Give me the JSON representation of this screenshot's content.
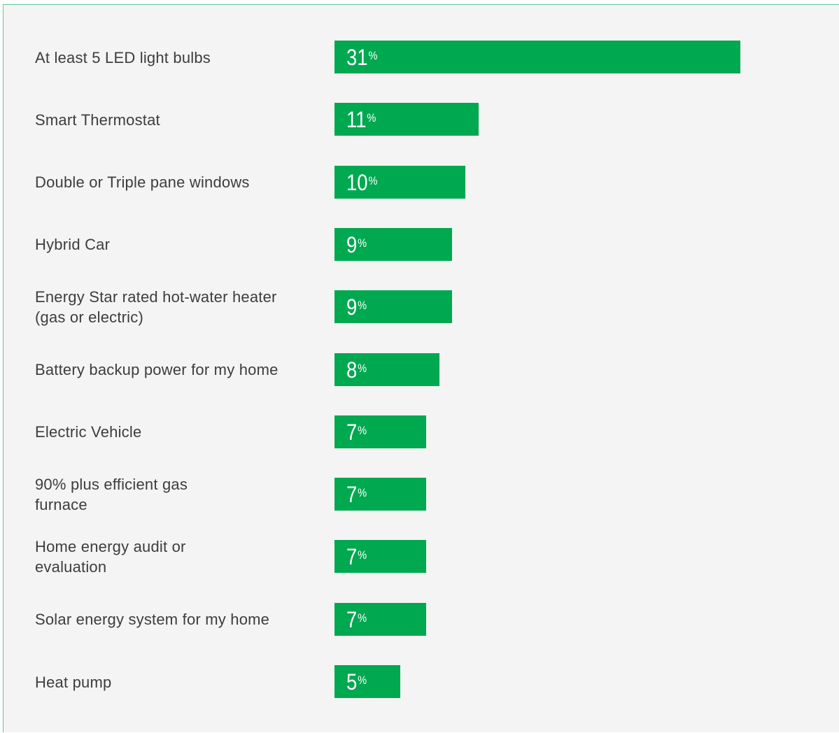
{
  "chart_data": {
    "type": "bar",
    "orientation": "horizontal",
    "categories": [
      "At least 5 LED light bulbs",
      "Smart Thermostat",
      "Double or Triple pane windows",
      "Hybrid Car",
      "Energy Star rated hot-water heater\n(gas or electric)",
      "Battery backup power for my home",
      "Electric Vehicle",
      "90% plus efficient gas\nfurnace",
      "Home energy audit or\nevaluation",
      "Solar energy system for my home",
      "Heat pump"
    ],
    "values": [
      31,
      11,
      10,
      9,
      9,
      8,
      7,
      7,
      7,
      7,
      5
    ],
    "unit": "%",
    "bar_color": "#00a850",
    "xlim": [
      0,
      31
    ],
    "grid": false
  }
}
